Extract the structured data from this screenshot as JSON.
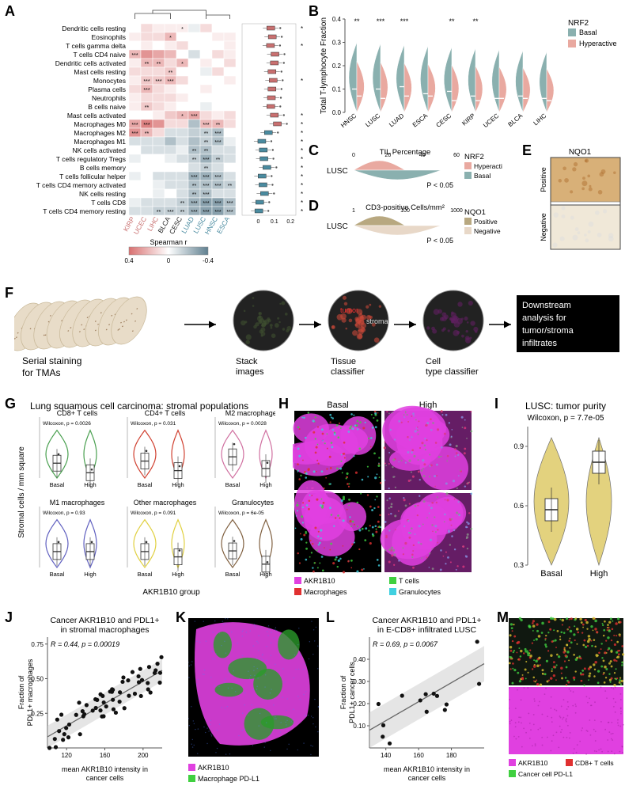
{
  "panelA": {
    "row_labels": [
      "Dendritic cells resting",
      "Eosinophils",
      "T cells gamma delta",
      "T cells CD4 naive",
      "Dendritic cells activated",
      "Mast cells resting",
      "Monocytes",
      "Plasma cells",
      "Neutrophils",
      "B cells naive",
      "Mast cells activated",
      "Macrophages M0",
      "Macrophages M2",
      "Macrophages M1",
      "NK cells activated",
      "T cells regulatory  Tregs",
      "B cells memory",
      "T cells follicular helper",
      "T cells CD4 memory activated",
      "NK cells resting",
      "T cells CD8",
      "T cells CD4 memory resting"
    ],
    "col_labels": [
      "KIRP",
      "UCEC",
      "LIHC",
      "BLCA",
      "CESC",
      "LUAD",
      "LUSC",
      "HNSC",
      "ESCA"
    ],
    "col_label_colors": [
      "#c97070",
      "#c97070",
      "#c97070",
      "#222",
      "#222",
      "#4a8ba0",
      "#4a8ba0",
      "#4a8ba0",
      "#4a8ba0"
    ],
    "heatmap": [
      [
        0,
        0.1,
        0.05,
        0.05,
        0.05,
        -0.05,
        0.1,
        0,
        0
      ],
      [
        0.05,
        0.1,
        0.1,
        0.2,
        0,
        0,
        0,
        0.05,
        0.05
      ],
      [
        0,
        0.05,
        0,
        0.05,
        0.1,
        0,
        0,
        0,
        0.05
      ],
      [
        0.2,
        0.3,
        0.25,
        0.2,
        0,
        -0.1,
        0,
        0.1,
        0.05
      ],
      [
        0.05,
        0.2,
        0.2,
        0.1,
        0.2,
        0,
        0.05,
        0,
        0.1
      ],
      [
        0.1,
        0.1,
        0.1,
        0.15,
        0,
        0,
        -0.05,
        0.1,
        0
      ],
      [
        0.05,
        0.15,
        0.15,
        0.2,
        0.1,
        0,
        0,
        0,
        0.05
      ],
      [
        0.1,
        0.2,
        0.1,
        0.05,
        0,
        0,
        0.05,
        0,
        0
      ],
      [
        0.05,
        0.1,
        0.1,
        0.1,
        0.05,
        0,
        0,
        0,
        0
      ],
      [
        0.05,
        0.15,
        0.1,
        0.05,
        0,
        0,
        -0.05,
        0,
        0
      ],
      [
        0,
        0,
        0.05,
        0.15,
        0.2,
        0.25,
        0.1,
        0.05,
        0.1
      ],
      [
        0.25,
        0.35,
        0.3,
        0.1,
        0.1,
        -0.2,
        0.2,
        0.2,
        0.1
      ],
      [
        0.3,
        0.2,
        0.1,
        -0.1,
        -0.1,
        -0.15,
        -0.15,
        -0.2,
        0
      ],
      [
        -0.1,
        -0.1,
        -0.1,
        -0.2,
        -0.1,
        -0.2,
        -0.15,
        -0.2,
        -0.05
      ],
      [
        0,
        -0.1,
        -0.1,
        -0.1,
        -0.05,
        -0.2,
        -0.2,
        -0.1,
        -0.1
      ],
      [
        -0.05,
        0,
        0,
        -0.05,
        -0.1,
        -0.15,
        -0.25,
        -0.15,
        -0.1
      ],
      [
        0,
        0,
        0,
        0,
        0,
        -0.1,
        -0.15,
        -0.1,
        0
      ],
      [
        -0.05,
        0,
        -0.1,
        -0.1,
        -0.1,
        -0.25,
        -0.25,
        -0.2,
        -0.1
      ],
      [
        0,
        0,
        -0.05,
        -0.1,
        -0.1,
        -0.2,
        -0.2,
        -0.2,
        -0.15
      ],
      [
        0,
        0,
        -0.05,
        0,
        -0.1,
        -0.2,
        -0.2,
        -0.1,
        -0.1
      ],
      [
        -0.05,
        -0.1,
        -0.1,
        -0.1,
        -0.15,
        -0.25,
        -0.3,
        -0.3,
        -0.2
      ],
      [
        -0.1,
        -0.1,
        -0.15,
        -0.15,
        -0.15,
        -0.25,
        -0.3,
        -0.3,
        -0.2
      ]
    ],
    "sig": [
      [
        "",
        "",
        "",
        "",
        "*",
        "",
        "",
        "",
        ""
      ],
      [
        "",
        "",
        "",
        "*",
        "",
        "",
        "",
        "",
        ""
      ],
      [
        "",
        "",
        "",
        "",
        "",
        "",
        "",
        "",
        ""
      ],
      [
        "***",
        "",
        "",
        "",
        "",
        "",
        "",
        "",
        ""
      ],
      [
        "",
        "**",
        "**",
        "",
        "*",
        "",
        "",
        "",
        ""
      ],
      [
        "",
        "",
        "",
        "**",
        "",
        "",
        "",
        "",
        ""
      ],
      [
        "",
        "***",
        "***",
        "***",
        "",
        "",
        "",
        "",
        ""
      ],
      [
        "",
        "***",
        "",
        "",
        "",
        "",
        "",
        "",
        ""
      ],
      [
        "",
        "",
        "",
        "",
        "",
        "",
        "",
        "",
        ""
      ],
      [
        "",
        "**",
        "",
        "",
        "",
        "",
        "",
        "",
        ""
      ],
      [
        "",
        "",
        "",
        "",
        "*",
        "***",
        "",
        "",
        ""
      ],
      [
        "***",
        "***",
        "",
        "",
        "",
        "",
        "***",
        "**",
        ""
      ],
      [
        "***",
        "**",
        "",
        "",
        "",
        "",
        "**",
        "***",
        ""
      ],
      [
        "",
        "",
        "",
        "",
        "",
        "",
        "**",
        "***",
        ""
      ],
      [
        "",
        "",
        "",
        "",
        "",
        "**",
        "**",
        "",
        ""
      ],
      [
        "",
        "",
        "",
        "",
        "",
        "**",
        "***",
        "**",
        ""
      ],
      [
        "",
        "",
        "",
        "",
        "",
        "",
        "**",
        "",
        ""
      ],
      [
        "",
        "",
        "",
        "",
        "",
        "***",
        "***",
        "***",
        ""
      ],
      [
        "",
        "",
        "",
        "",
        "",
        "**",
        "***",
        "***",
        "**"
      ],
      [
        "",
        "",
        "",
        "",
        "",
        "**",
        "***",
        "",
        ""
      ],
      [
        "",
        "",
        "",
        "",
        "**",
        "***",
        "***",
        "***",
        "***"
      ],
      [
        "",
        "",
        "**",
        "***",
        "**",
        "***",
        "***",
        "***",
        "***"
      ]
    ],
    "row_sig": [
      "***",
      "",
      "***",
      "",
      "",
      "",
      "***",
      "",
      "",
      "",
      "***",
      "***",
      "***",
      "***",
      "***",
      "***",
      "***",
      "***",
      "***",
      "***",
      "***",
      "***"
    ],
    "legend_label": "Spearman r",
    "legend_ticks": [
      "0.4",
      "0",
      "-0.4"
    ],
    "legend_colors": [
      "#d87070",
      "#ffffff",
      "#608090"
    ],
    "box_colors": [
      "#c97070",
      "#4a8ba0"
    ],
    "box_ticks": [
      "0",
      "0.1",
      "0.2"
    ]
  },
  "panelB": {
    "categories": [
      "HNSC",
      "LUSC",
      "LUAD",
      "ESCA",
      "CESC",
      "KIRP",
      "UCEC",
      "BLCA",
      "LIHC"
    ],
    "sig": [
      "**",
      "***",
      "***",
      "",
      "**",
      "**",
      "",
      "",
      ""
    ],
    "ylabel": "Total T-lymphocyte Fraction",
    "ylim": [
      0,
      0.4
    ],
    "yticks": [
      0,
      0.1,
      0.2,
      0.3,
      0.4
    ],
    "legend_title": "NRF2",
    "legend_labels": [
      "Basal",
      "Hyperactive"
    ],
    "colors": {
      "Basal": "#8ab0af",
      "Hyperactive": "#e9a9a0"
    },
    "medians_basal": [
      0.1,
      0.1,
      0.11,
      0.08,
      0.09,
      0.07,
      0.06,
      0.07,
      0.06
    ],
    "medians_hyper": [
      0.07,
      0.06,
      0.07,
      0.07,
      0.05,
      0.05,
      0.06,
      0.06,
      0.05
    ]
  },
  "panelC": {
    "title": "TIL Percentage",
    "label": "LUSC",
    "xticks": [
      "0",
      "20",
      "40",
      "60"
    ],
    "p": "P < 0.05",
    "legend_title": "NRF2",
    "legend_labels": [
      "Hyperactive",
      "Basal"
    ],
    "colors": {
      "Hyperactive": "#e9a9a0",
      "Basal": "#8ab0af"
    }
  },
  "panelD": {
    "title": "CD3-positive Cells/mm²",
    "label": "LUSC",
    "xticks": [
      "1",
      "100",
      "1000"
    ],
    "p": "P < 0.05",
    "legend_title": "NQO1",
    "legend_labels": [
      "Positive",
      "Negative"
    ],
    "colors": {
      "Positive": "#b8a880",
      "Negative": "#e8d8c8"
    }
  },
  "panelE": {
    "title": "NQO1",
    "labels": [
      "Positive",
      "Negative"
    ],
    "colors": [
      "#d8b078",
      "#f0e8d8"
    ]
  },
  "panelF": {
    "steps": [
      "Serial staining for TMAs",
      "Stack images",
      "Tissue classifier",
      "Cell type classifier",
      "Downstream analysis for tumor/stroma infiltrates"
    ],
    "tissue_labels": [
      "tumor",
      "stroma"
    ],
    "tissue_colors": [
      "#d04030",
      "#b0b0b0"
    ]
  },
  "panelG": {
    "super_title": "Lung squamous cell carcinoma: stromal populations",
    "ylab": "Stromal cells / mm square",
    "xlab": "AKR1B10 group",
    "x_levels": [
      "Basal",
      "High"
    ],
    "plots": [
      {
        "title": "CD8+ T cells",
        "p": "Wilcoxon, p = 0.0026",
        "color": "#4aa050",
        "ymax": 2500,
        "m1": 700,
        "m2": 250
      },
      {
        "title": "CD4+ T cells",
        "p": "Wilcoxon, p = 0.031",
        "color": "#d04030",
        "ymax": 2500,
        "m1": 800,
        "m2": 350
      },
      {
        "title": "M2 macrophages",
        "p": "Wilcoxon, p = 0.0028",
        "color": "#d070a0",
        "ymax": 500,
        "m1": 200,
        "m2": 90
      },
      {
        "title": "M1 macrophages",
        "p": "Wilcoxon, p = 0.93",
        "color": "#6060c0",
        "ymax": 300,
        "m1": 90,
        "m2": 90
      },
      {
        "title": "Other macrophages",
        "p": "Wilcoxon, p = 0.091",
        "color": "#e0d040",
        "ymax": 600,
        "m1": 180,
        "m2": 120
      },
      {
        "title": "Granulocytes",
        "p": "Wilcoxon, p = 6e-05",
        "color": "#806040",
        "ymax": 1600,
        "m1": 500,
        "m2": 100
      }
    ]
  },
  "panelH": {
    "headers": [
      "Basal",
      "High"
    ],
    "legend": [
      {
        "color": "#e040e0",
        "label": "AKR1B10"
      },
      {
        "color": "#40d040",
        "label": "T cells"
      },
      {
        "color": "#e03030",
        "label": "Macrophages"
      },
      {
        "color": "#40d0e0",
        "label": "Granulocytes"
      }
    ]
  },
  "panelI": {
    "title": "LUSC: tumor purity",
    "p": "Wilcoxon, p = 7.7e-05",
    "x_levels": [
      "Basal",
      "High"
    ],
    "ylim": [
      0.3,
      1.0
    ],
    "yticks": [
      0.3,
      0.6,
      0.9
    ],
    "m1": 0.58,
    "m2": 0.82,
    "fill": "#d8c048"
  },
  "panelJ": {
    "title": "Cancer AKR1B10 and PDL1+\nin stromal macrophages",
    "xlab": "mean AKR1B10 intensity in cancer cells",
    "ylab": "Fraction of\nPDL1+ macrophages",
    "stat": "R = 0.44, p = 0.00019",
    "xlim": [
      100,
      220
    ],
    "xticks": [
      120,
      160,
      200
    ],
    "ylim": [
      0,
      0.8
    ],
    "yticks": [
      0.25,
      0.5,
      0.75
    ],
    "n_points": 60
  },
  "panelK": {
    "legend": [
      {
        "color": "#e040e0",
        "label": "AKR1B10"
      },
      {
        "color": "#40d040",
        "label": "Macrophage PD-L1"
      }
    ]
  },
  "panelL": {
    "title": "Cancer AKR1B10 and PDL1+\nin E-CD8+ infiltrated LUSC",
    "xlab": "mean AKR1B10 intensity in cancer cells",
    "ylab": "Fraction of\nPDL1+ cancer cells",
    "stat": "R = 0.69, p = 0.0067",
    "xlim": [
      130,
      200
    ],
    "xticks": [
      140,
      160,
      180
    ],
    "ylim": [
      0,
      0.5
    ],
    "yticks": [
      0.1,
      0.2,
      0.3,
      0.4
    ],
    "n_points": 14
  },
  "panelM": {
    "legend": [
      {
        "color": "#e040e0",
        "label": "AKR1B10"
      },
      {
        "color": "#e03030",
        "label": "CD8+ T cells"
      },
      {
        "color": "#40d040",
        "label": "Cancer cell PD-L1"
      }
    ]
  }
}
